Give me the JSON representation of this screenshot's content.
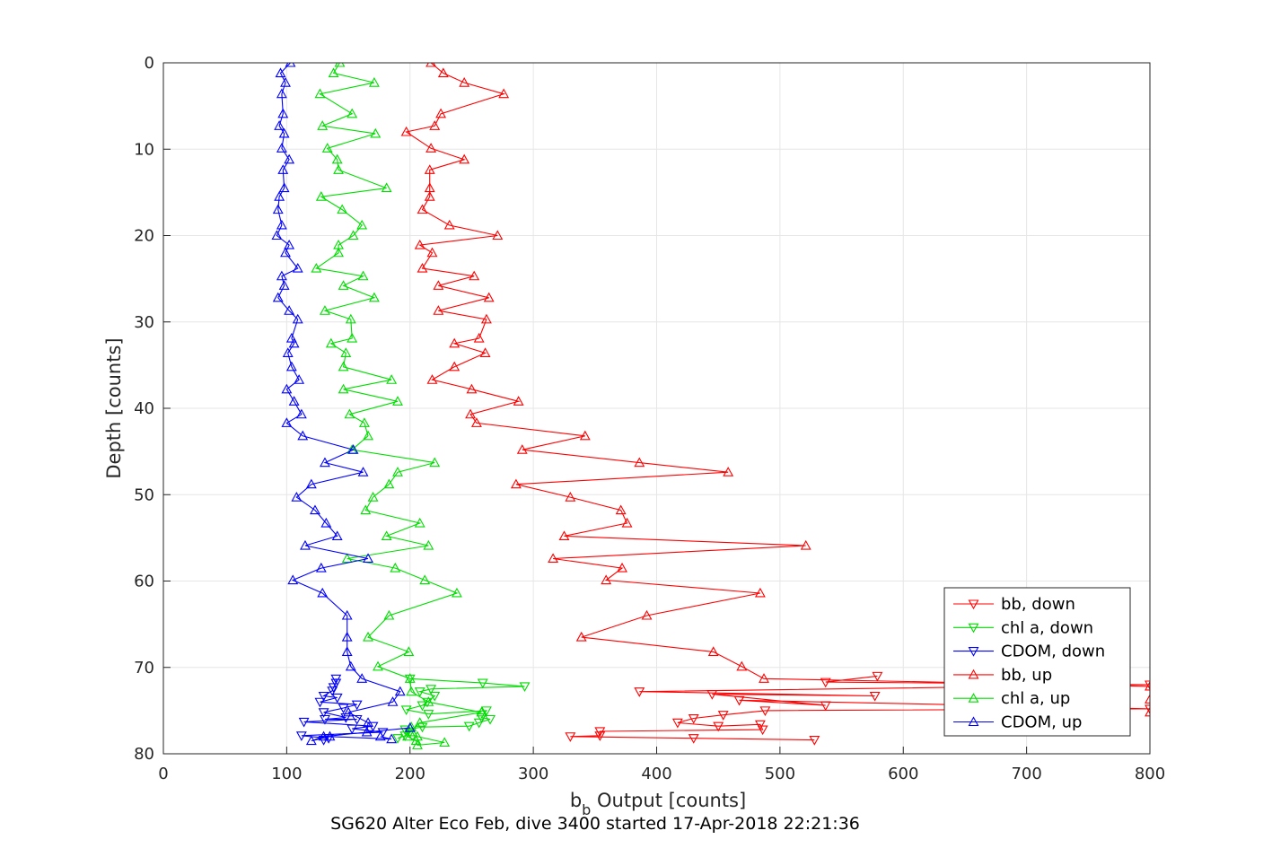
{
  "chart_data": {
    "type": "line",
    "xlabel": "b",
    "xlabel_subscript": "b",
    "xlabel_suffix": " Output [counts]",
    "ylabel": "Depth [counts]",
    "caption": "SG620 Alter Eco Feb, dive 3400 started 17-Apr-2018 22:21:36",
    "xlim": [
      0,
      800
    ],
    "ylim": [
      0,
      80
    ],
    "y_reversed": true,
    "grid": true,
    "legend_position": "bottom-right",
    "xticks": [
      "0",
      "100",
      "200",
      "300",
      "400",
      "500",
      "600",
      "700",
      "800"
    ],
    "yticks": [
      "0",
      "10",
      "20",
      "30",
      "40",
      "50",
      "60",
      "70",
      "80"
    ],
    "series": [
      {
        "name": "bb, down",
        "color": "#ff0000",
        "marker": "triangle-down",
        "points": [
          [
            579,
            71.0
          ],
          [
            537,
            71.7
          ],
          [
            800,
            72.0
          ],
          [
            386,
            72.8
          ],
          [
            577,
            73.3
          ],
          [
            445,
            73.1
          ],
          [
            537,
            74.4
          ],
          [
            467,
            73.8
          ],
          [
            800,
            74.8
          ],
          [
            488,
            75.0
          ],
          [
            454,
            75.5
          ],
          [
            430,
            75.9
          ],
          [
            417,
            76.4
          ],
          [
            450,
            76.8
          ],
          [
            484,
            76.6
          ],
          [
            486,
            77.2
          ],
          [
            354,
            77.4
          ],
          [
            354,
            77.9
          ],
          [
            330,
            78.0
          ],
          [
            430,
            78.2
          ],
          [
            528,
            78.4
          ]
        ]
      },
      {
        "name": "chl a, down",
        "color": "#00dd00",
        "marker": "triangle-down",
        "points": [
          [
            200,
            71.3
          ],
          [
            259,
            71.8
          ],
          [
            293,
            72.2
          ],
          [
            217,
            72.5
          ],
          [
            208,
            72.8
          ],
          [
            220,
            73.3
          ],
          [
            214,
            74.0
          ],
          [
            210,
            74.4
          ],
          [
            197,
            74.9
          ],
          [
            215,
            75.4
          ],
          [
            262,
            75.0
          ],
          [
            258,
            75.8
          ],
          [
            265,
            76.0
          ],
          [
            256,
            76.4
          ],
          [
            248,
            76.8
          ],
          [
            210,
            76.9
          ],
          [
            196,
            77.2
          ],
          [
            200,
            77.5
          ],
          [
            196,
            77.9
          ],
          [
            190,
            78.2
          ]
        ]
      },
      {
        "name": "CDOM, down",
        "color": "#0000ff",
        "marker": "triangle-down",
        "points": [
          [
            140,
            71.3
          ],
          [
            140,
            71.8
          ],
          [
            138,
            72.3
          ],
          [
            137,
            72.7
          ],
          [
            130,
            73.3
          ],
          [
            141,
            73.5
          ],
          [
            127,
            74.0
          ],
          [
            157,
            74.3
          ],
          [
            146,
            74.7
          ],
          [
            130,
            75.2
          ],
          [
            148,
            75.8
          ],
          [
            131,
            76.0
          ],
          [
            157,
            76.0
          ],
          [
            114,
            76.3
          ],
          [
            170,
            76.8
          ],
          [
            153,
            77.1
          ],
          [
            178,
            77.5
          ],
          [
            112,
            77.9
          ],
          [
            134,
            78.2
          ],
          [
            130,
            78.4
          ]
        ]
      },
      {
        "name": "bb, up",
        "color": "#ff0000",
        "marker": "triangle-up",
        "points": [
          [
            217,
            0
          ],
          [
            227,
            1.2
          ],
          [
            244,
            2.3
          ],
          [
            276,
            3.6
          ],
          [
            225,
            5.9
          ],
          [
            220,
            7.3
          ],
          [
            197,
            8.0
          ],
          [
            217,
            9.9
          ],
          [
            244,
            11.2
          ],
          [
            216,
            12.4
          ],
          [
            216,
            14.5
          ],
          [
            216,
            15.5
          ],
          [
            210,
            17.0
          ],
          [
            232,
            18.8
          ],
          [
            271,
            20.0
          ],
          [
            208,
            21.1
          ],
          [
            218,
            22.0
          ],
          [
            210,
            23.8
          ],
          [
            252,
            24.7
          ],
          [
            223,
            25.8
          ],
          [
            264,
            27.2
          ],
          [
            223,
            28.7
          ],
          [
            262,
            29.7
          ],
          [
            256,
            31.9
          ],
          [
            236,
            32.5
          ],
          [
            261,
            33.6
          ],
          [
            236,
            35.2
          ],
          [
            218,
            36.7
          ],
          [
            250,
            37.8
          ],
          [
            288,
            39.2
          ],
          [
            249,
            40.7
          ],
          [
            254,
            41.7
          ],
          [
            342,
            43.2
          ],
          [
            291,
            44.8
          ],
          [
            386,
            46.3
          ],
          [
            458,
            47.4
          ],
          [
            286,
            48.8
          ],
          [
            330,
            50.3
          ],
          [
            371,
            51.8
          ],
          [
            376,
            53.3
          ],
          [
            325,
            54.8
          ],
          [
            521,
            55.9
          ],
          [
            316,
            57.4
          ],
          [
            372,
            58.5
          ],
          [
            359,
            59.9
          ],
          [
            484,
            61.4
          ],
          [
            392,
            64.0
          ],
          [
            339,
            66.5
          ],
          [
            446,
            68.2
          ],
          [
            469,
            69.9
          ],
          [
            487,
            71.3
          ],
          [
            800,
            72.2
          ],
          [
            800,
            73.7
          ],
          [
            800,
            75.2
          ]
        ]
      },
      {
        "name": "chl a, up",
        "color": "#00dd00",
        "marker": "triangle-up",
        "points": [
          [
            143,
            0
          ],
          [
            138,
            1.2
          ],
          [
            171,
            2.3
          ],
          [
            127,
            3.6
          ],
          [
            153,
            5.9
          ],
          [
            129,
            7.3
          ],
          [
            172,
            8.2
          ],
          [
            133,
            9.9
          ],
          [
            141,
            11.2
          ],
          [
            142,
            12.4
          ],
          [
            181,
            14.5
          ],
          [
            128,
            15.5
          ],
          [
            145,
            17.0
          ],
          [
            161,
            18.8
          ],
          [
            154,
            20.0
          ],
          [
            142,
            21.1
          ],
          [
            142,
            22.0
          ],
          [
            124,
            23.8
          ],
          [
            162,
            24.7
          ],
          [
            146,
            25.8
          ],
          [
            171,
            27.2
          ],
          [
            131,
            28.7
          ],
          [
            152,
            29.7
          ],
          [
            153,
            31.9
          ],
          [
            136,
            32.5
          ],
          [
            148,
            33.6
          ],
          [
            146,
            35.2
          ],
          [
            185,
            36.7
          ],
          [
            146,
            37.8
          ],
          [
            190,
            39.2
          ],
          [
            151,
            40.7
          ],
          [
            163,
            41.7
          ],
          [
            166,
            43.2
          ],
          [
            153,
            44.8
          ],
          [
            220,
            46.3
          ],
          [
            190,
            47.4
          ],
          [
            183,
            48.8
          ],
          [
            170,
            50.3
          ],
          [
            164,
            51.8
          ],
          [
            208,
            53.3
          ],
          [
            181,
            54.8
          ],
          [
            215,
            55.9
          ],
          [
            149,
            57.4
          ],
          [
            188,
            58.5
          ],
          [
            212,
            59.9
          ],
          [
            238,
            61.4
          ],
          [
            183,
            64.0
          ],
          [
            166,
            66.5
          ],
          [
            199,
            68.2
          ],
          [
            174,
            69.9
          ],
          [
            200,
            71.3
          ],
          [
            201,
            72.8
          ],
          [
            215,
            74.0
          ],
          [
            258,
            75.2
          ],
          [
            208,
            76.4
          ],
          [
            200,
            77.5
          ],
          [
            198,
            78.0
          ],
          [
            205,
            78.5
          ],
          [
            206,
            79.0
          ],
          [
            228,
            78.7
          ],
          [
            206,
            78.0
          ],
          [
            201,
            76.9
          ]
        ]
      },
      {
        "name": "CDOM, up",
        "color": "#0000ff",
        "marker": "triangle-up",
        "points": [
          [
            103,
            0
          ],
          [
            95,
            1.2
          ],
          [
            99,
            2.3
          ],
          [
            96,
            3.6
          ],
          [
            97,
            5.9
          ],
          [
            94,
            7.3
          ],
          [
            98,
            8.2
          ],
          [
            96,
            9.9
          ],
          [
            102,
            11.2
          ],
          [
            97,
            12.4
          ],
          [
            98,
            14.5
          ],
          [
            94,
            15.5
          ],
          [
            93,
            17.0
          ],
          [
            96,
            18.8
          ],
          [
            92,
            20.0
          ],
          [
            102,
            21.1
          ],
          [
            99,
            22.0
          ],
          [
            109,
            23.8
          ],
          [
            96,
            24.7
          ],
          [
            98,
            25.8
          ],
          [
            93,
            27.2
          ],
          [
            102,
            28.7
          ],
          [
            109,
            29.7
          ],
          [
            104,
            31.9
          ],
          [
            106,
            32.5
          ],
          [
            101,
            33.6
          ],
          [
            104,
            35.2
          ],
          [
            110,
            36.7
          ],
          [
            100,
            37.8
          ],
          [
            106,
            39.2
          ],
          [
            112,
            40.7
          ],
          [
            100,
            41.7
          ],
          [
            113,
            43.2
          ],
          [
            154,
            44.8
          ],
          [
            131,
            46.3
          ],
          [
            162,
            47.4
          ],
          [
            120,
            48.8
          ],
          [
            108,
            50.3
          ],
          [
            123,
            51.8
          ],
          [
            132,
            53.3
          ],
          [
            141,
            54.8
          ],
          [
            115,
            55.9
          ],
          [
            166,
            57.4
          ],
          [
            128,
            58.5
          ],
          [
            105,
            59.9
          ],
          [
            129,
            61.4
          ],
          [
            149,
            64.0
          ],
          [
            149,
            66.5
          ],
          [
            149,
            68.2
          ],
          [
            152,
            69.9
          ],
          [
            161,
            71.3
          ],
          [
            192,
            72.8
          ],
          [
            186,
            74.0
          ],
          [
            150,
            75.2
          ],
          [
            166,
            76.4
          ],
          [
            165,
            77.5
          ],
          [
            200,
            77.0
          ],
          [
            130,
            78.0
          ],
          [
            120,
            78.5
          ],
          [
            135,
            78.0
          ],
          [
            185,
            78.3
          ],
          [
            176,
            78.0
          ]
        ]
      }
    ]
  }
}
